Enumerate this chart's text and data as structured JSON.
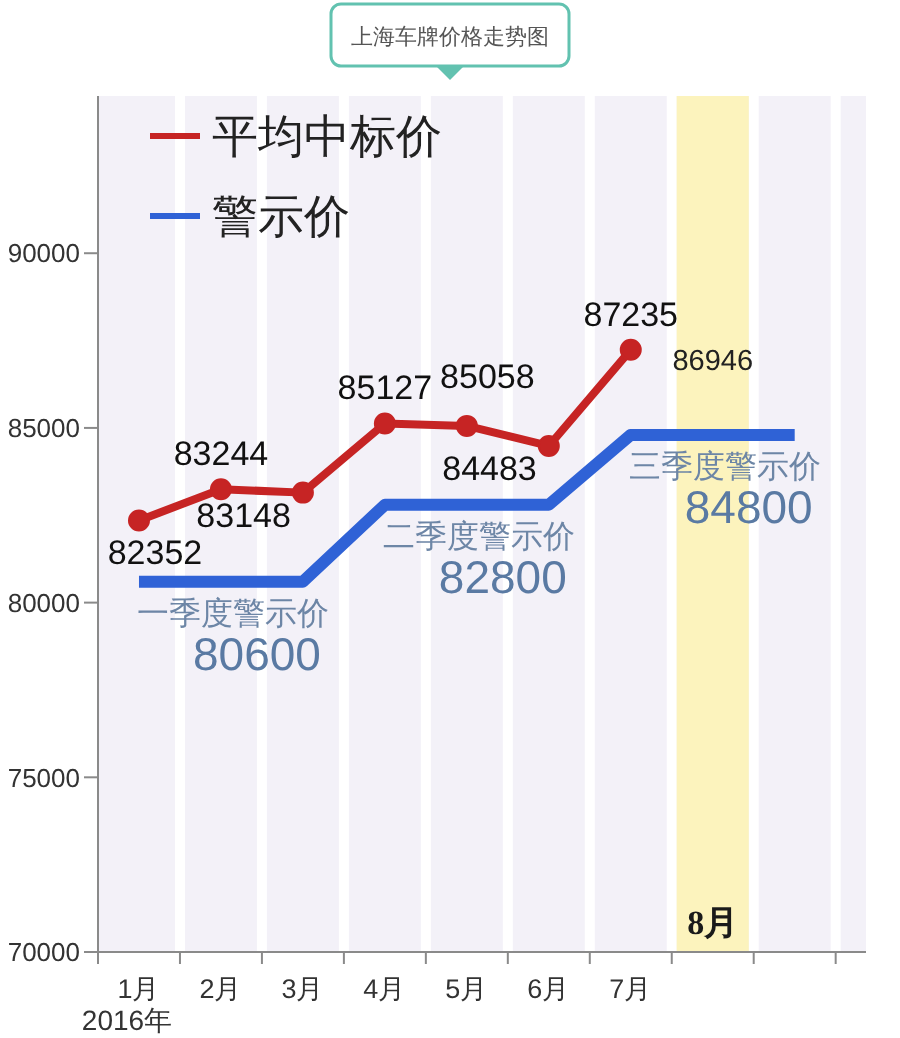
{
  "chart_data": {
    "type": "line",
    "title": "上海车牌价格走势图",
    "xlabel": "2016年",
    "categories": [
      "1月",
      "2月",
      "3月",
      "4月",
      "5月",
      "6月",
      "7月",
      "8月",
      null
    ],
    "series": [
      {
        "name": "平均中标价",
        "color": "#c62424",
        "values": [
          82352,
          83244,
          83148,
          85127,
          85058,
          84483,
          87235,
          null,
          null
        ],
        "marker": "circle",
        "data_labels": true
      },
      {
        "name": "警示价",
        "color": "#2f62d6",
        "values": [
          80600,
          80600,
          80600,
          82800,
          82800,
          82800,
          84800,
          84800,
          84800
        ],
        "marker": "none",
        "value_labels": [
          null,
          "80600",
          null,
          null,
          "82800",
          null,
          null,
          "84800",
          null
        ]
      }
    ],
    "annotations": [
      {
        "text": "一季度警示价",
        "x": "2月",
        "y": 80600
      },
      {
        "text": "二季度警示价",
        "x": "5月",
        "y": 82800
      },
      {
        "text": "三季度警示价",
        "x": "8月",
        "y": 84800
      },
      "86946"
    ],
    "bands": [
      {
        "axis": "x",
        "from": "8月",
        "to": "8月",
        "color": "#fcf3bd"
      }
    ],
    "ylim": [
      70000,
      94500
    ],
    "yticks": [
      70000,
      75000,
      80000,
      85000,
      90000
    ],
    "grid": "x",
    "legend": "top left",
    "line_style": "solid"
  }
}
